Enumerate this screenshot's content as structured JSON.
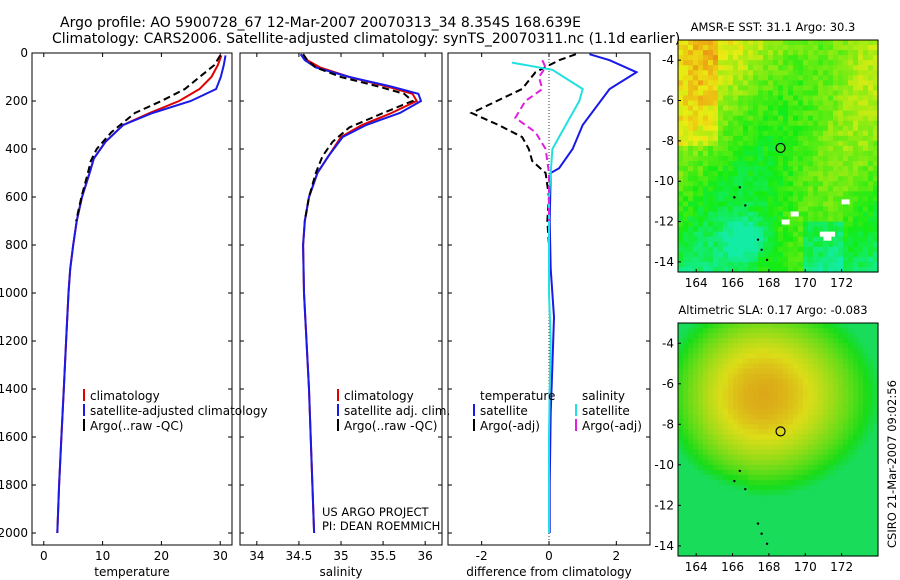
{
  "header": {
    "line1": "Argo profile: AO 5900728_67 12-Mar-2007 20070313_34 8.354S 168.639E",
    "line2": "Climatology: CARS2006. Satellite-adjusted climatology: synTS_20070311.nc (1.1d earlier)"
  },
  "credits": {
    "project": "US ARGO PROJECT",
    "pi": "PI: DEAN ROEMMICH"
  },
  "side_label": "CSIRO 21-Mar-2007 09:02:56",
  "colors": {
    "climatology": "#e00000",
    "satellite": "#1a1ae6",
    "argo": "#000000",
    "sal_satellite": "#22e0e0",
    "sal_argo": "#e020e0"
  },
  "chart_data": [
    {
      "type": "line",
      "xlabel": "temperature",
      "ylabel": "",
      "xlim": [
        -2,
        32
      ],
      "ylim": [
        2050,
        0
      ],
      "xticks": [
        0,
        10,
        20,
        30
      ],
      "yticks": [
        0,
        200,
        400,
        600,
        800,
        1000,
        1200,
        1400,
        1600,
        1800,
        2000
      ],
      "legend": [
        "climatology",
        "satellite-adjusted climatology",
        "Argo(..raw -QC)"
      ],
      "series": [
        {
          "name": "climatology",
          "color": "red",
          "points": [
            [
              30.2,
              10
            ],
            [
              29.6,
              50
            ],
            [
              28.5,
              100
            ],
            [
              26.5,
              150
            ],
            [
              23,
              200
            ],
            [
              18,
              250
            ],
            [
              13.5,
              300
            ],
            [
              10.5,
              370
            ],
            [
              8.5,
              440
            ],
            [
              7.8,
              500
            ],
            [
              6.5,
              600
            ],
            [
              5.6,
              700
            ],
            [
              5.0,
              800
            ],
            [
              4.5,
              900
            ],
            [
              4.2,
              1000
            ],
            [
              3.8,
              1200
            ],
            [
              3.4,
              1400
            ],
            [
              3.0,
              1600
            ],
            [
              2.6,
              1800
            ],
            [
              2.3,
              2000
            ]
          ]
        },
        {
          "name": "satellite-adjusted climatology",
          "color": "blue",
          "points": [
            [
              30.9,
              10
            ],
            [
              30.6,
              50
            ],
            [
              30.1,
              100
            ],
            [
              29.3,
              150
            ],
            [
              25,
              200
            ],
            [
              18.5,
              250
            ],
            [
              13.5,
              300
            ],
            [
              10.5,
              370
            ],
            [
              8.5,
              440
            ],
            [
              7.8,
              500
            ],
            [
              6.5,
              600
            ],
            [
              5.6,
              700
            ],
            [
              5.0,
              800
            ],
            [
              4.5,
              900
            ],
            [
              4.2,
              1000
            ],
            [
              3.8,
              1200
            ],
            [
              3.4,
              1400
            ],
            [
              3.0,
              1600
            ],
            [
              2.6,
              1800
            ],
            [
              2.3,
              2000
            ]
          ]
        },
        {
          "name": "Argo(..raw -QC)",
          "color": "black",
          "dash": true,
          "points": [
            [
              30.0,
              10
            ],
            [
              29.0,
              50
            ],
            [
              26.5,
              100
            ],
            [
              24,
              150
            ],
            [
              20,
              200
            ],
            [
              15.5,
              250
            ],
            [
              11.5,
              330
            ],
            [
              9.0,
              400
            ],
            [
              8.0,
              450
            ],
            [
              7.5,
              500
            ],
            [
              6.4,
              600
            ],
            [
              5.5,
              700
            ]
          ]
        }
      ]
    },
    {
      "type": "line",
      "xlabel": "salinity",
      "ylabel": "",
      "xlim": [
        33.8,
        36.2
      ],
      "ylim": [
        2050,
        0
      ],
      "xticks": [
        34,
        34.5,
        35,
        35.5,
        36
      ],
      "legend": [
        "climatology",
        "satellite adj. clim.",
        "Argo(..raw -QC)"
      ],
      "series": [
        {
          "name": "climatology",
          "color": "red",
          "points": [
            [
              34.55,
              5
            ],
            [
              34.6,
              30
            ],
            [
              34.75,
              60
            ],
            [
              35.1,
              100
            ],
            [
              35.55,
              140
            ],
            [
              35.85,
              170
            ],
            [
              35.9,
              200
            ],
            [
              35.6,
              250
            ],
            [
              35.25,
              300
            ],
            [
              35.0,
              350
            ],
            [
              34.85,
              430
            ],
            [
              34.72,
              500
            ],
            [
              34.62,
              600
            ],
            [
              34.57,
              700
            ],
            [
              34.55,
              800
            ],
            [
              34.56,
              1000
            ],
            [
              34.59,
              1200
            ],
            [
              34.62,
              1400
            ],
            [
              34.64,
              1600
            ],
            [
              34.66,
              1800
            ],
            [
              34.68,
              2000
            ]
          ]
        },
        {
          "name": "satellite adj. clim.",
          "color": "blue",
          "points": [
            [
              34.52,
              5
            ],
            [
              34.57,
              30
            ],
            [
              34.7,
              60
            ],
            [
              35.1,
              100
            ],
            [
              35.6,
              140
            ],
            [
              35.92,
              170
            ],
            [
              35.95,
              200
            ],
            [
              35.7,
              250
            ],
            [
              35.3,
              300
            ],
            [
              35.02,
              350
            ],
            [
              34.85,
              430
            ],
            [
              34.72,
              500
            ],
            [
              34.62,
              600
            ],
            [
              34.57,
              700
            ],
            [
              34.55,
              800
            ],
            [
              34.56,
              1000
            ],
            [
              34.59,
              1200
            ],
            [
              34.62,
              1400
            ],
            [
              34.64,
              1600
            ],
            [
              34.66,
              1800
            ],
            [
              34.68,
              2000
            ]
          ]
        },
        {
          "name": "Argo(..raw -QC)",
          "color": "black",
          "dash": true,
          "points": [
            [
              34.55,
              5
            ],
            [
              34.6,
              30
            ],
            [
              34.7,
              60
            ],
            [
              35.0,
              100
            ],
            [
              35.45,
              140
            ],
            [
              35.75,
              170
            ],
            [
              35.85,
              200
            ],
            [
              35.5,
              250
            ],
            [
              35.1,
              310
            ],
            [
              34.9,
              370
            ],
            [
              34.78,
              430
            ],
            [
              34.7,
              500
            ],
            [
              34.62,
              600
            ],
            [
              34.57,
              700
            ]
          ]
        }
      ]
    },
    {
      "type": "line",
      "xlabel": "difference from climatology",
      "ylabel": "",
      "xlim": [
        -3,
        3.0
      ],
      "ylim": [
        2050,
        0
      ],
      "xticks": [
        -2,
        0,
        2
      ],
      "legend": [
        "temperature",
        "satellite",
        "Argo(-adj)",
        "salinity",
        "satellite",
        "Argo(-adj)"
      ],
      "series": [
        {
          "name": "temperature satellite",
          "color": "blue",
          "points": [
            [
              1.2,
              5
            ],
            [
              1.8,
              30
            ],
            [
              2.6,
              80
            ],
            [
              1.8,
              150
            ],
            [
              1.0,
              300
            ],
            [
              0.7,
              400
            ],
            [
              0.3,
              480
            ],
            [
              0.05,
              500
            ],
            [
              0.02,
              700
            ],
            [
              0.05,
              900
            ],
            [
              0.15,
              1100
            ],
            [
              0.1,
              1300
            ],
            [
              0.05,
              1500
            ],
            [
              0.02,
              1800
            ],
            [
              0.02,
              2000
            ]
          ]
        },
        {
          "name": "temperature Argo(-adj)",
          "color": "black",
          "dash": true,
          "points": [
            [
              0.8,
              5
            ],
            [
              0.3,
              30
            ],
            [
              -0.4,
              80
            ],
            [
              -0.8,
              150
            ],
            [
              -2.3,
              250
            ],
            [
              -1.5,
              300
            ],
            [
              -0.8,
              350
            ],
            [
              -0.6,
              400
            ],
            [
              -0.5,
              450
            ],
            [
              -0.1,
              500
            ],
            [
              0.0,
              600
            ],
            [
              -0.05,
              700
            ],
            [
              0.0,
              800
            ],
            [
              0.0,
              900
            ]
          ]
        },
        {
          "name": "salinity satellite",
          "color": "cyan",
          "points": [
            [
              -1.1,
              40
            ],
            [
              0.1,
              70
            ],
            [
              1.0,
              150
            ],
            [
              0.9,
              200
            ],
            [
              0.5,
              300
            ],
            [
              0.1,
              400
            ],
            [
              0.0,
              600
            ],
            [
              0.0,
              1000
            ],
            [
              0.05,
              1200
            ],
            [
              0.02,
              1400
            ],
            [
              0.0,
              1600
            ],
            [
              0.0,
              2000
            ]
          ]
        },
        {
          "name": "salinity Argo(-adj)",
          "color": "magenta",
          "dash": true,
          "points": [
            [
              -0.2,
              30
            ],
            [
              -0.1,
              60
            ],
            [
              -0.3,
              100
            ],
            [
              -0.2,
              150
            ],
            [
              -0.7,
              200
            ],
            [
              -1.0,
              270
            ],
            [
              -0.4,
              330
            ],
            [
              -0.1,
              400
            ],
            [
              0.0,
              500
            ],
            [
              0.0,
              700
            ]
          ]
        }
      ]
    },
    {
      "type": "heatmap",
      "title": "AMSR-E SST: 31.1 Argo: 30.3",
      "xlim": [
        163,
        174
      ],
      "ylim": [
        -14.5,
        -3
      ],
      "xticks": [
        164,
        166,
        168,
        170,
        172
      ],
      "yticks": [
        -4,
        -6,
        -8,
        -10,
        -12,
        -14
      ],
      "marker": [
        168.64,
        -8.35
      ]
    },
    {
      "type": "heatmap",
      "title": "Altimetric SLA: 0.17 Argo: -0.083",
      "xlim": [
        163,
        174
      ],
      "ylim": [
        -14.5,
        -3
      ],
      "xticks": [
        164,
        166,
        168,
        170,
        172
      ],
      "yticks": [
        -4,
        -6,
        -8,
        -10,
        -12,
        -14
      ],
      "marker": [
        168.64,
        -8.35
      ]
    }
  ]
}
